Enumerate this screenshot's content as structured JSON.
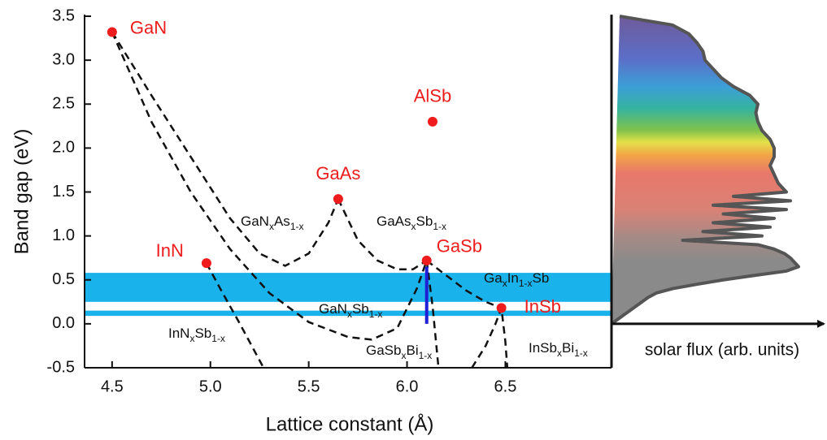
{
  "chart_data": {
    "type": "scatter",
    "x_label": "Lattice constant (Å)",
    "y_label": "Band gap (eV)",
    "xlim": [
      4.36,
      7.04
    ],
    "ylim": [
      -0.5,
      3.5
    ],
    "xticks": [
      4.5,
      {
        "value": 5,
        "label": "5.0"
      },
      5.5,
      {
        "value": 6,
        "label": "6.0"
      },
      6.5
    ],
    "yticks": [
      3.5,
      {
        "value": 3,
        "label": "3.0"
      },
      2.5,
      {
        "value": 2,
        "label": "2.0"
      },
      1.5,
      {
        "value": 1,
        "label": "1.0"
      },
      0.5,
      {
        "value": 0,
        "label": "0.0"
      },
      -0.5
    ],
    "points": {
      "names": [
        "GaN",
        "InN",
        "GaAs",
        "AlSb",
        "GaSb",
        "InSb"
      ],
      "x": [
        4.5,
        4.98,
        5.65,
        6.13,
        6.1,
        6.48
      ],
      "y": [
        3.32,
        0.69,
        1.42,
        2.3,
        0.72,
        0.18
      ],
      "color": "#ee1c1c"
    },
    "curves": [
      {
        "name_parts": [
          "GaN",
          "x",
          "As",
          "1-x"
        ],
        "x": [
          4.5,
          4.7,
          4.9,
          5.1,
          5.25,
          5.38,
          5.5,
          5.6,
          5.65
        ],
        "y": [
          3.32,
          2.6,
          1.9,
          1.2,
          0.8,
          0.66,
          0.8,
          1.15,
          1.42
        ]
      },
      {
        "name_parts": [
          "GaAs",
          "x",
          "Sb",
          "1-x"
        ],
        "x": [
          5.65,
          5.75,
          5.85,
          5.95,
          6.03,
          6.1
        ],
        "y": [
          1.42,
          0.95,
          0.72,
          0.62,
          0.62,
          0.72
        ]
      },
      {
        "name_parts": [
          "Ga",
          "x",
          "In",
          "1-x",
          "Sb"
        ],
        "x": [
          6.1,
          6.2,
          6.3,
          6.4,
          6.48
        ],
        "y": [
          0.72,
          0.55,
          0.38,
          0.25,
          0.18
        ]
      },
      {
        "name_parts": [
          "GaN",
          "x",
          "Sb",
          "1-x"
        ],
        "x": [
          4.5,
          4.7,
          4.9,
          5.1,
          5.3,
          5.5,
          5.7,
          5.82,
          5.95,
          6.05,
          6.1
        ],
        "y": [
          3.32,
          2.3,
          1.5,
          0.85,
          0.35,
          0.02,
          -0.15,
          -0.18,
          -0.05,
          0.4,
          0.72
        ]
      },
      {
        "name_parts": [
          "InN",
          "x",
          "Sb",
          "1-x"
        ],
        "x": [
          4.98,
          5.05,
          5.15,
          5.27
        ],
        "y": [
          0.69,
          0.4,
          0.0,
          -0.5
        ]
      },
      {
        "name_parts": [
          "GaSb",
          "x",
          "Bi",
          "1-x"
        ],
        "x": [
          6.1,
          6.13,
          6.16
        ],
        "y": [
          0.72,
          0.2,
          -0.5
        ]
      },
      {
        "name_parts": [
          "InSb",
          "x",
          "Bi",
          "1-x"
        ],
        "x": [
          6.33,
          6.4,
          6.45,
          6.48,
          6.5,
          6.51
        ],
        "y": [
          -0.5,
          -0.25,
          0.0,
          0.18,
          -0.2,
          -0.5
        ]
      }
    ],
    "bands": [
      [
        0.25,
        0.58
      ],
      [
        0.09,
        0.15
      ]
    ],
    "band_color": "#1ab2ea",
    "marker_line": {
      "x": 6.1,
      "y": [
        0,
        0.65
      ],
      "color": "#1f1fd6"
    },
    "spectrum": {
      "x_label": "solar flux (arb. units)",
      "xlim": [
        0,
        1
      ],
      "energy": [
        3.5,
        3.4,
        3.3,
        3.2,
        3.1,
        3.0,
        2.9,
        2.8,
        2.7,
        2.6,
        2.5,
        2.4,
        2.3,
        2.2,
        2.1,
        2.0,
        1.9,
        1.8,
        1.7,
        1.6,
        1.5,
        1.45,
        1.4,
        1.35,
        1.3,
        1.25,
        1.2,
        1.15,
        1.1,
        1.05,
        1.0,
        0.95,
        0.9,
        0.85,
        0.8,
        0.75,
        0.7,
        0.65,
        0.6,
        0.55,
        0.5,
        0.45,
        0.4,
        0.35,
        0.3,
        0.2,
        0.1,
        0.0
      ],
      "flux": [
        0.04,
        0.3,
        0.38,
        0.42,
        0.45,
        0.46,
        0.5,
        0.54,
        0.6,
        0.68,
        0.72,
        0.71,
        0.72,
        0.74,
        0.78,
        0.8,
        0.8,
        0.78,
        0.8,
        0.82,
        0.86,
        0.6,
        0.88,
        0.5,
        0.86,
        0.55,
        0.8,
        0.5,
        0.78,
        0.45,
        0.74,
        0.35,
        0.72,
        0.8,
        0.85,
        0.88,
        0.9,
        0.92,
        0.86,
        0.7,
        0.55,
        0.42,
        0.3,
        0.22,
        0.18,
        0.12,
        0.06,
        0.0
      ],
      "color": "#555555"
    }
  }
}
